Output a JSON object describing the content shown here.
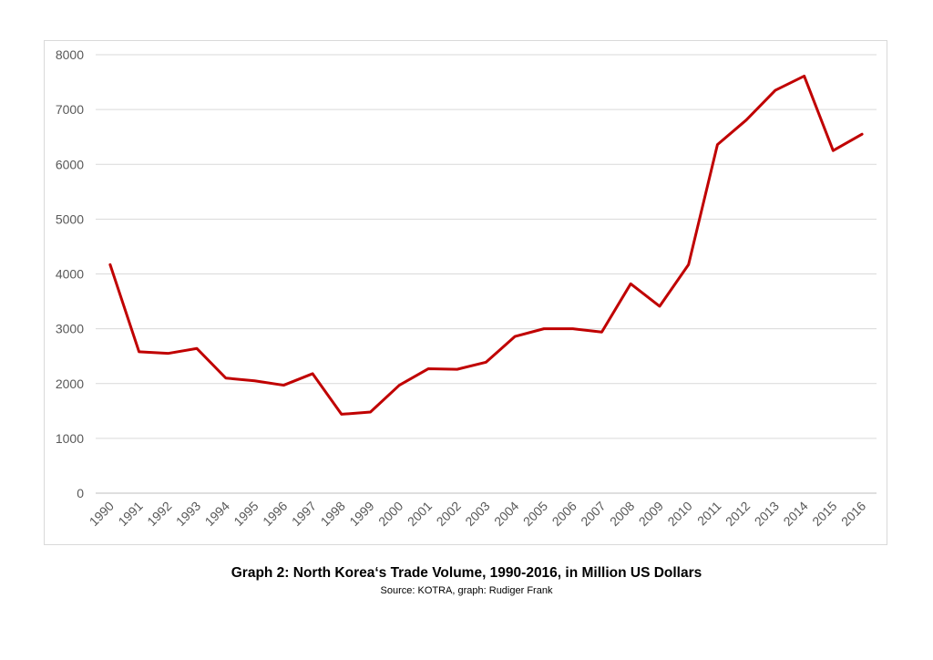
{
  "chart_data": {
    "type": "line",
    "title": "Graph 2: North Korea‘s Trade Volume, 1990-2016, in Million US Dollars",
    "subtitle": "Source: KOTRA, graph: Rudiger Frank",
    "xlabel": "",
    "ylabel": "",
    "categories": [
      "1990",
      "1991",
      "1992",
      "1993",
      "1994",
      "1995",
      "1996",
      "1997",
      "1998",
      "1999",
      "2000",
      "2001",
      "2002",
      "2003",
      "2004",
      "2005",
      "2006",
      "2007",
      "2008",
      "2009",
      "2010",
      "2011",
      "2012",
      "2013",
      "2014",
      "2015",
      "2016"
    ],
    "series": [
      {
        "values": [
          4170,
          2580,
          2550,
          2640,
          2100,
          2050,
          1970,
          2180,
          1440,
          1480,
          1970,
          2270,
          2260,
          2390,
          2860,
          3000,
          3000,
          2940,
          3820,
          3410,
          4170,
          6360,
          6810,
          7350,
          7610,
          6250,
          6550
        ],
        "color": "#c00000"
      }
    ],
    "ylim": [
      0,
      8000
    ],
    "yticks": [
      0,
      1000,
      2000,
      3000,
      4000,
      5000,
      6000,
      7000,
      8000
    ],
    "grid": true,
    "legend": "none"
  }
}
